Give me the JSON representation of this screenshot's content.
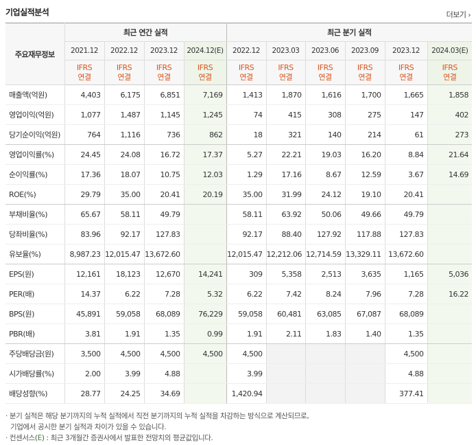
{
  "title": "기업실적분석",
  "more": "더보기",
  "annual_header": "최근 연간 실적",
  "quarter_header": "최근 분기 실적",
  "label_header": "주요재무정보",
  "periods": [
    "2021.12",
    "2022.12",
    "2023.12",
    "2024.12(E)",
    "2022.12",
    "2023.03",
    "2023.06",
    "2023.09",
    "2023.12",
    "2024.03(E)"
  ],
  "ifrs": [
    "IFRS",
    "연결"
  ],
  "rows": [
    {
      "label": "매출액(억원)",
      "values": [
        "4,403",
        "6,175",
        "6,851",
        "7,169",
        "1,413",
        "1,870",
        "1,616",
        "1,700",
        "1,665",
        "1,858"
      ]
    },
    {
      "label": "영업이익(억원)",
      "values": [
        "1,077",
        "1,487",
        "1,145",
        "1,245",
        "74",
        "415",
        "308",
        "275",
        "147",
        "402"
      ]
    },
    {
      "label": "당기순이익(억원)",
      "values": [
        "764",
        "1,116",
        "736",
        "862",
        "18",
        "321",
        "140",
        "214",
        "61",
        "273"
      ]
    },
    {
      "label": "영업이익률(%)",
      "values": [
        "24.45",
        "24.08",
        "16.72",
        "17.37",
        "5.27",
        "22.21",
        "19.03",
        "16.20",
        "8.84",
        "21.64"
      ]
    },
    {
      "label": "순이익률(%)",
      "values": [
        "17.36",
        "18.07",
        "10.75",
        "12.03",
        "1.29",
        "17.16",
        "8.67",
        "12.59",
        "3.67",
        "14.69"
      ]
    },
    {
      "label": "ROE(%)",
      "values": [
        "29.79",
        "35.00",
        "20.41",
        "20.19",
        "35.00",
        "31.99",
        "24.12",
        "19.10",
        "20.41",
        ""
      ]
    },
    {
      "label": "부채비율(%)",
      "values": [
        "65.67",
        "58.11",
        "49.79",
        "",
        "58.11",
        "63.92",
        "50.06",
        "49.66",
        "49.79",
        ""
      ]
    },
    {
      "label": "당좌비율(%)",
      "values": [
        "83.96",
        "92.17",
        "127.83",
        "",
        "92.17",
        "88.40",
        "127.92",
        "117.88",
        "127.83",
        ""
      ]
    },
    {
      "label": "유보율(%)",
      "values": [
        "8,987.23",
        "12,015.47",
        "13,672.60",
        "",
        "12,015.47",
        "12,212.06",
        "12,714.59",
        "13,329.11",
        "13,672.60",
        ""
      ]
    },
    {
      "label": "EPS(원)",
      "values": [
        "12,161",
        "18,123",
        "12,670",
        "14,241",
        "309",
        "5,358",
        "2,513",
        "3,635",
        "1,165",
        "5,036"
      ]
    },
    {
      "label": "PER(배)",
      "values": [
        "14.37",
        "6.22",
        "7.28",
        "5.32",
        "6.22",
        "7.42",
        "8.24",
        "7.96",
        "7.28",
        "16.22"
      ]
    },
    {
      "label": "BPS(원)",
      "values": [
        "45,891",
        "59,058",
        "68,089",
        "76,229",
        "59,058",
        "60,481",
        "63,085",
        "67,087",
        "68,089",
        ""
      ]
    },
    {
      "label": "PBR(배)",
      "values": [
        "3.81",
        "1.91",
        "1.35",
        "0.99",
        "1.91",
        "2.11",
        "1.83",
        "1.40",
        "1.35",
        ""
      ]
    },
    {
      "label": "주당배당금(원)",
      "values": [
        "3,500",
        "4,500",
        "4,500",
        "4,500",
        "4,500",
        "",
        "",
        "",
        "4,500",
        ""
      ]
    },
    {
      "label": "시가배당률(%)",
      "values": [
        "2.00",
        "3.99",
        "4.88",
        "",
        "3.99",
        "",
        "",
        "",
        "4.88",
        ""
      ]
    },
    {
      "label": "배당성향(%)",
      "values": [
        "28.77",
        "24.25",
        "34.69",
        "",
        "1,420.94",
        "",
        "",
        "",
        "377.41",
        ""
      ]
    }
  ],
  "notes": {
    "line1": "분기 실적은 해당 분기까지의 누적 실적에서 직전 분기까지의 누적 실적을 차감하는 방식으로 계산되므로,",
    "line2": "기업에서 공시한 분기 실적과 차이가 있을 수 있습니다.",
    "line3_pre": "컨센서스(",
    "line3_e": "E",
    "line3_post": ") : 최근 3개월간 증권사에서 발표한 전망치의 평균값입니다."
  }
}
